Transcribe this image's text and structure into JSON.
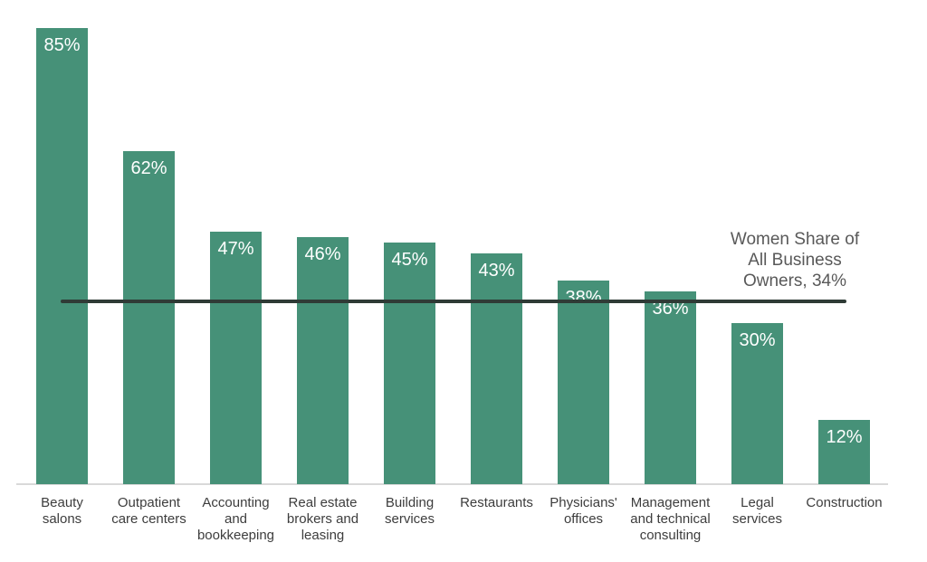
{
  "chart_data": {
    "type": "bar",
    "title": "",
    "xlabel": "",
    "ylabel": "",
    "ylim": [
      0,
      85
    ],
    "grid": false,
    "legend": false,
    "unit": "%",
    "categories": [
      "Beauty salons",
      "Outpatient care centers",
      "Accounting and bookkeeping",
      "Real estate brokers and leasing",
      "Building services",
      "Restaurants",
      "Physicians' offices",
      "Management and technical consulting",
      "Legal services",
      "Construction"
    ],
    "category_label_lines": [
      [
        "Beauty",
        "salons"
      ],
      [
        "Outpatient",
        "care centers"
      ],
      [
        "Accounting",
        "and",
        "bookkeeping"
      ],
      [
        "Real estate",
        "brokers and",
        "leasing"
      ],
      [
        "Building",
        "services"
      ],
      [
        "Restaurants"
      ],
      [
        "Physicians'",
        "offices"
      ],
      [
        "Management",
        "and technical",
        "consulting"
      ],
      [
        "Legal",
        "services"
      ],
      [
        "Construction"
      ]
    ],
    "values": [
      85,
      62,
      47,
      46,
      45,
      43,
      38,
      36,
      30,
      12
    ],
    "value_labels": [
      "85%",
      "62%",
      "47%",
      "46%",
      "45%",
      "43%",
      "38%",
      "36%",
      "30%",
      "12%"
    ],
    "reference_line": {
      "value": 34,
      "label_lines": [
        "Women Share of",
        "All Business",
        "Owners, 34%"
      ],
      "label_text": "Women Share of All Business Owners, 34%"
    },
    "colors": {
      "bar": "#469178",
      "value_label": "#ffffff",
      "category_label": "#3d3d3d",
      "reference_line": "#2f3b36",
      "annotation_text": "#595959",
      "axis_baseline": "#d9d9d9",
      "background": "#ffffff"
    }
  }
}
